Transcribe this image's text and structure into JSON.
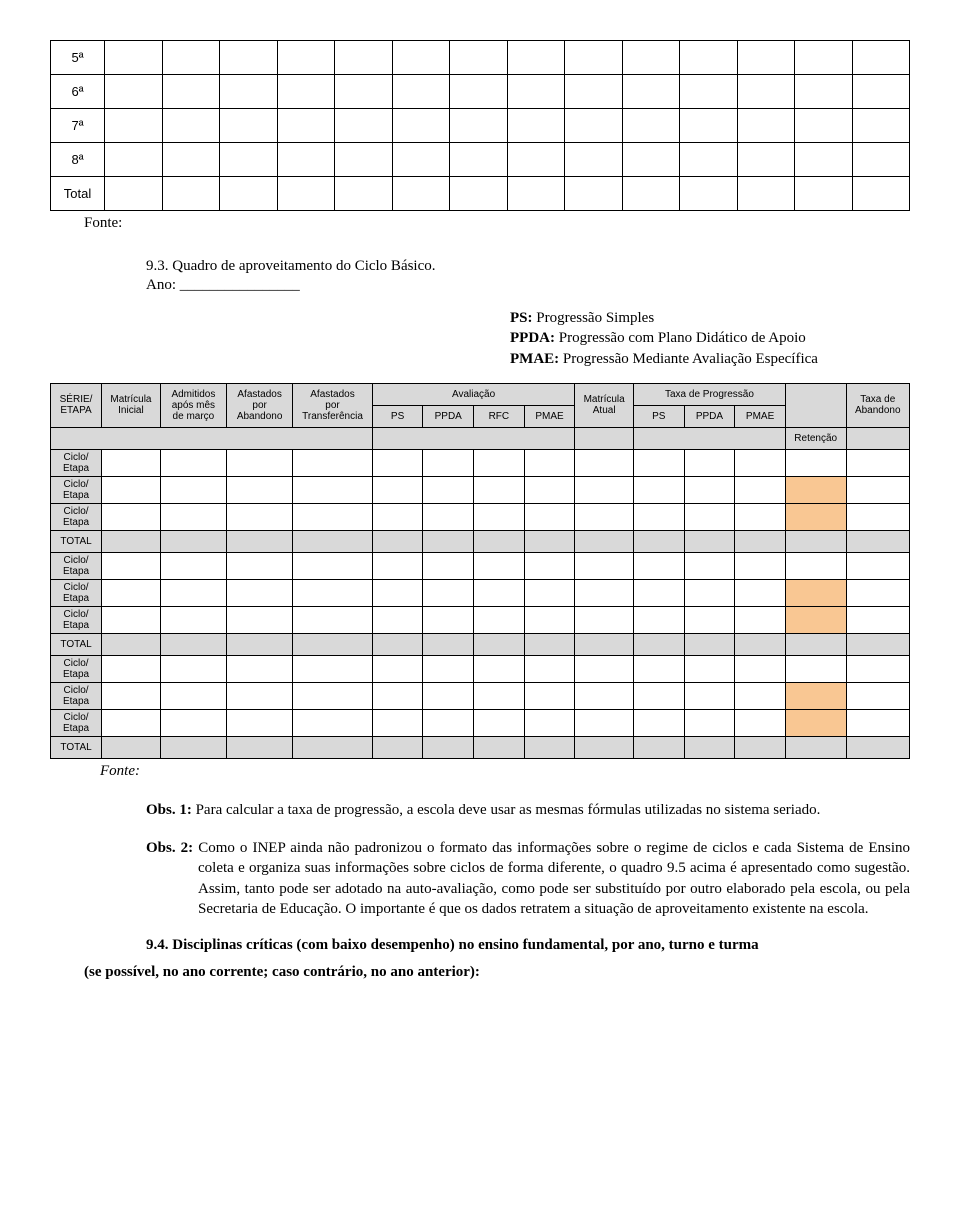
{
  "table1": {
    "rows": [
      "5ª",
      "6ª",
      "7ª",
      "8ª",
      "Total"
    ],
    "fonte": "Fonte:",
    "cols": 14
  },
  "section93": {
    "title": "9.3. Quadro de aproveitamento do Ciclo Básico.",
    "ano": "Ano: ________________"
  },
  "legend": {
    "l1b": "PS:",
    "l1": " Progressão Simples",
    "l2b": "PPDA:",
    "l2": " Progressão com Plano Didático de Apoio",
    "l3b": "PMAE:",
    "l3": " Progressão Mediante Avaliação Específica"
  },
  "table2": {
    "headers": {
      "c1": "SÉRIE/\nETAPA",
      "c2": "Matrícula\nInicial",
      "c3": "Admitidos\napós mês\nde março",
      "c4": "Afastados\npor\nAbandono",
      "c5": "Afastados\npor\nTransferência",
      "aval": "Avaliação",
      "ps1": "PS",
      "ppda1": "PPDA",
      "rfc": "RFC",
      "pmae1": "PMAE",
      "matatual": "Matrícula\nAtual",
      "taxaprog": "Taxa de Progressão",
      "ps2": "PS",
      "ppda2": "PPDA",
      "pmae2": "PMAE",
      "ret": "Retenção",
      "taxaab": "Taxa de\nAbandono"
    },
    "grouprow": "Ciclo/\nEtapa",
    "totalrow": "TOTAL",
    "fonte": "Fonte:",
    "orange": "#f9c793",
    "gray": "#d9d9d9"
  },
  "obs1": {
    "label": "Obs. 1:",
    "text": " Para calcular a taxa de progressão, a escola deve usar as mesmas fórmulas utilizadas no sistema seriado."
  },
  "obs2": {
    "label": "Obs. 2:",
    "text": " Como o INEP ainda não padronizou o formato das informações sobre o regime de ciclos e cada Sistema de Ensino coleta e organiza suas informações sobre ciclos de forma diferente, o quadro 9.5 acima é apresentado como sugestão. Assim, tanto pode ser adotado na auto-avaliação, como pode ser substituído por outro elaborado pela escola, ou pela Secretaria de Educação. O importante é que os dados retratem a situação de aproveitamento existente na escola."
  },
  "h94": {
    "title": "9.4. Disciplinas críticas (com baixo desempenho) no ensino fundamental, por ano, turno e turma",
    "sub": "(se possível, no ano corrente; caso contrário, no ano anterior):"
  }
}
